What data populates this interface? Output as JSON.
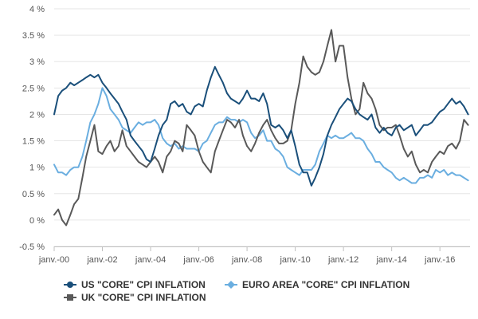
{
  "chart_data": {
    "type": "line",
    "title": "",
    "xlabel": "",
    "ylabel": "",
    "x_range": [
      2000.0,
      2017.25
    ],
    "ylim": [
      -0.5,
      4
    ],
    "y_ticks": [
      -0.5,
      0,
      0.5,
      1,
      1.5,
      2,
      2.5,
      3,
      3.5,
      4
    ],
    "y_tick_labels": [
      "-0.5 %",
      "0 %",
      "0.5 %",
      "1 %",
      "1.5 %",
      "2 %",
      "2.5 %",
      "3 %",
      "3.5 %",
      "4 %"
    ],
    "x_ticks": [
      2000,
      2002,
      2004,
      2006,
      2008,
      2010,
      2012,
      2014,
      2016
    ],
    "x_tick_labels": [
      "janv.-00",
      "janv.-02",
      "janv.-04",
      "janv.-06",
      "janv.-08",
      "janv.-10",
      "janv.-12",
      "janv.-14",
      "janv.-16"
    ],
    "grid": "horizontal",
    "legend_position": "bottom",
    "series": [
      {
        "name": "US \"CORE\" CPI INFLATION",
        "color": "#1a4f7a",
        "marker": "circle",
        "x": [
          2000.0,
          2000.17,
          2000.33,
          2000.5,
          2000.67,
          2000.83,
          2001.0,
          2001.17,
          2001.33,
          2001.5,
          2001.67,
          2001.83,
          2002.0,
          2002.17,
          2002.33,
          2002.5,
          2002.67,
          2002.83,
          2003.0,
          2003.17,
          2003.33,
          2003.5,
          2003.67,
          2003.83,
          2004.0,
          2004.17,
          2004.33,
          2004.5,
          2004.67,
          2004.83,
          2005.0,
          2005.17,
          2005.33,
          2005.5,
          2005.67,
          2005.83,
          2006.0,
          2006.17,
          2006.33,
          2006.5,
          2006.67,
          2006.83,
          2007.0,
          2007.17,
          2007.33,
          2007.5,
          2007.67,
          2007.83,
          2008.0,
          2008.17,
          2008.33,
          2008.5,
          2008.67,
          2008.83,
          2009.0,
          2009.17,
          2009.33,
          2009.5,
          2009.67,
          2009.83,
          2010.0,
          2010.17,
          2010.33,
          2010.5,
          2010.67,
          2010.83,
          2011.0,
          2011.17,
          2011.33,
          2011.5,
          2011.67,
          2011.83,
          2012.0,
          2012.17,
          2012.33,
          2012.5,
          2012.67,
          2012.83,
          2013.0,
          2013.17,
          2013.33,
          2013.5,
          2013.67,
          2013.83,
          2014.0,
          2014.17,
          2014.33,
          2014.5,
          2014.67,
          2014.83,
          2015.0,
          2015.17,
          2015.33,
          2015.5,
          2015.67,
          2015.83,
          2016.0,
          2016.17,
          2016.33,
          2016.5,
          2016.67,
          2016.83,
          2017.0,
          2017.17
        ],
        "y": [
          2.0,
          2.35,
          2.45,
          2.5,
          2.6,
          2.55,
          2.6,
          2.65,
          2.7,
          2.75,
          2.7,
          2.75,
          2.6,
          2.5,
          2.4,
          2.3,
          2.2,
          2.05,
          1.9,
          1.6,
          1.5,
          1.4,
          1.3,
          1.15,
          1.1,
          1.35,
          1.6,
          1.8,
          1.9,
          2.2,
          2.25,
          2.15,
          2.2,
          2.05,
          2.0,
          2.15,
          2.2,
          2.15,
          2.45,
          2.7,
          2.9,
          2.75,
          2.6,
          2.4,
          2.3,
          2.25,
          2.2,
          2.3,
          2.45,
          2.3,
          2.3,
          2.25,
          2.4,
          2.2,
          1.8,
          1.75,
          1.8,
          1.7,
          1.55,
          1.7,
          1.4,
          1.05,
          0.9,
          0.9,
          0.65,
          0.8,
          1.0,
          1.25,
          1.6,
          1.8,
          1.95,
          2.1,
          2.2,
          2.3,
          2.25,
          2.1,
          2.0,
          1.95,
          1.9,
          2.0,
          1.75,
          1.65,
          1.75,
          1.65,
          1.6,
          1.75,
          1.8,
          1.7,
          1.75,
          1.8,
          1.6,
          1.7,
          1.8,
          1.8,
          1.85,
          1.95,
          2.05,
          2.1,
          2.2,
          2.3,
          2.2,
          2.25,
          2.15,
          2.0
        ]
      },
      {
        "name": "EURO AREA \"CORE\" CPI INFLATION",
        "color": "#6aaee0",
        "marker": "diamond",
        "x": [
          2000.0,
          2000.17,
          2000.33,
          2000.5,
          2000.67,
          2000.83,
          2001.0,
          2001.17,
          2001.33,
          2001.5,
          2001.67,
          2001.83,
          2002.0,
          2002.17,
          2002.33,
          2002.5,
          2002.67,
          2002.83,
          2003.0,
          2003.17,
          2003.33,
          2003.5,
          2003.67,
          2003.83,
          2004.0,
          2004.17,
          2004.33,
          2004.5,
          2004.67,
          2004.83,
          2005.0,
          2005.17,
          2005.33,
          2005.5,
          2005.67,
          2005.83,
          2006.0,
          2006.17,
          2006.33,
          2006.5,
          2006.67,
          2006.83,
          2007.0,
          2007.17,
          2007.33,
          2007.5,
          2007.67,
          2007.83,
          2008.0,
          2008.17,
          2008.33,
          2008.5,
          2008.67,
          2008.83,
          2009.0,
          2009.17,
          2009.33,
          2009.5,
          2009.67,
          2009.83,
          2010.0,
          2010.17,
          2010.33,
          2010.5,
          2010.67,
          2010.83,
          2011.0,
          2011.17,
          2011.33,
          2011.5,
          2011.67,
          2011.83,
          2012.0,
          2012.17,
          2012.33,
          2012.5,
          2012.67,
          2012.83,
          2013.0,
          2013.17,
          2013.33,
          2013.5,
          2013.67,
          2013.83,
          2014.0,
          2014.17,
          2014.33,
          2014.5,
          2014.67,
          2014.83,
          2015.0,
          2015.17,
          2015.33,
          2015.5,
          2015.67,
          2015.83,
          2016.0,
          2016.17,
          2016.33,
          2016.5,
          2016.67,
          2016.83,
          2017.0,
          2017.17
        ],
        "y": [
          1.05,
          0.9,
          0.9,
          0.85,
          0.95,
          1.0,
          1.0,
          1.2,
          1.5,
          1.85,
          2.0,
          2.2,
          2.5,
          2.35,
          2.1,
          2.0,
          1.9,
          1.75,
          1.7,
          1.65,
          1.75,
          1.85,
          1.8,
          1.85,
          1.85,
          1.9,
          1.8,
          1.55,
          1.45,
          1.4,
          1.45,
          1.35,
          1.4,
          1.35,
          1.35,
          1.35,
          1.3,
          1.45,
          1.5,
          1.65,
          1.8,
          1.85,
          1.85,
          1.95,
          1.9,
          1.9,
          1.85,
          1.9,
          1.85,
          1.65,
          1.55,
          1.6,
          1.7,
          1.5,
          1.5,
          1.35,
          1.3,
          1.2,
          1.0,
          0.95,
          0.9,
          0.85,
          0.95,
          0.95,
          0.95,
          1.05,
          1.3,
          1.45,
          1.6,
          1.55,
          1.6,
          1.55,
          1.55,
          1.6,
          1.65,
          1.55,
          1.55,
          1.5,
          1.35,
          1.25,
          1.1,
          1.1,
          1.0,
          0.95,
          0.9,
          0.8,
          0.75,
          0.8,
          0.75,
          0.7,
          0.7,
          0.8,
          0.8,
          0.85,
          0.8,
          0.95,
          0.9,
          0.95,
          0.85,
          0.9,
          0.85,
          0.85,
          0.8,
          0.75
        ]
      },
      {
        "name": "UK \"CORE\" CPI INFLATION",
        "color": "#595959",
        "marker": "square",
        "x": [
          2000.0,
          2000.17,
          2000.33,
          2000.5,
          2000.67,
          2000.83,
          2001.0,
          2001.17,
          2001.33,
          2001.5,
          2001.67,
          2001.83,
          2002.0,
          2002.17,
          2002.33,
          2002.5,
          2002.67,
          2002.83,
          2003.0,
          2003.17,
          2003.33,
          2003.5,
          2003.67,
          2003.83,
          2004.0,
          2004.17,
          2004.33,
          2004.5,
          2004.67,
          2004.83,
          2005.0,
          2005.17,
          2005.33,
          2005.5,
          2005.67,
          2005.83,
          2006.0,
          2006.17,
          2006.33,
          2006.5,
          2006.67,
          2006.83,
          2007.0,
          2007.17,
          2007.33,
          2007.5,
          2007.67,
          2007.83,
          2008.0,
          2008.17,
          2008.33,
          2008.5,
          2008.67,
          2008.83,
          2009.0,
          2009.17,
          2009.33,
          2009.5,
          2009.67,
          2009.83,
          2010.0,
          2010.17,
          2010.33,
          2010.5,
          2010.67,
          2010.83,
          2011.0,
          2011.17,
          2011.33,
          2011.5,
          2011.67,
          2011.83,
          2012.0,
          2012.17,
          2012.33,
          2012.5,
          2012.67,
          2012.83,
          2013.0,
          2013.17,
          2013.33,
          2013.5,
          2013.67,
          2013.83,
          2014.0,
          2014.17,
          2014.33,
          2014.5,
          2014.67,
          2014.83,
          2015.0,
          2015.17,
          2015.33,
          2015.5,
          2015.67,
          2015.83,
          2016.0,
          2016.17,
          2016.33,
          2016.5,
          2016.67,
          2016.83,
          2017.0,
          2017.17
        ],
        "y": [
          0.1,
          0.2,
          0.0,
          -0.1,
          0.1,
          0.3,
          0.4,
          0.8,
          1.2,
          1.5,
          1.8,
          1.3,
          1.25,
          1.4,
          1.5,
          1.3,
          1.4,
          1.7,
          1.4,
          1.3,
          1.2,
          1.1,
          1.05,
          1.0,
          1.1,
          1.2,
          1.1,
          0.9,
          1.2,
          1.3,
          1.5,
          1.45,
          1.3,
          1.8,
          1.7,
          1.6,
          1.3,
          1.1,
          1.0,
          0.9,
          1.3,
          1.5,
          1.7,
          1.9,
          1.85,
          1.75,
          1.9,
          1.6,
          1.4,
          1.3,
          1.45,
          1.65,
          1.8,
          1.9,
          1.7,
          1.55,
          1.45,
          1.45,
          1.5,
          1.7,
          2.2,
          2.6,
          3.1,
          2.9,
          2.8,
          2.75,
          2.8,
          3.0,
          3.3,
          3.6,
          3.0,
          3.3,
          3.3,
          2.7,
          2.3,
          2.0,
          2.1,
          2.6,
          2.4,
          2.3,
          2.1,
          1.8,
          1.7,
          1.75,
          1.75,
          1.8,
          1.6,
          1.35,
          1.2,
          1.3,
          1.05,
          0.9,
          0.95,
          0.9,
          1.1,
          1.2,
          1.3,
          1.25,
          1.4,
          1.45,
          1.35,
          1.5,
          1.9,
          1.8
        ]
      }
    ]
  }
}
